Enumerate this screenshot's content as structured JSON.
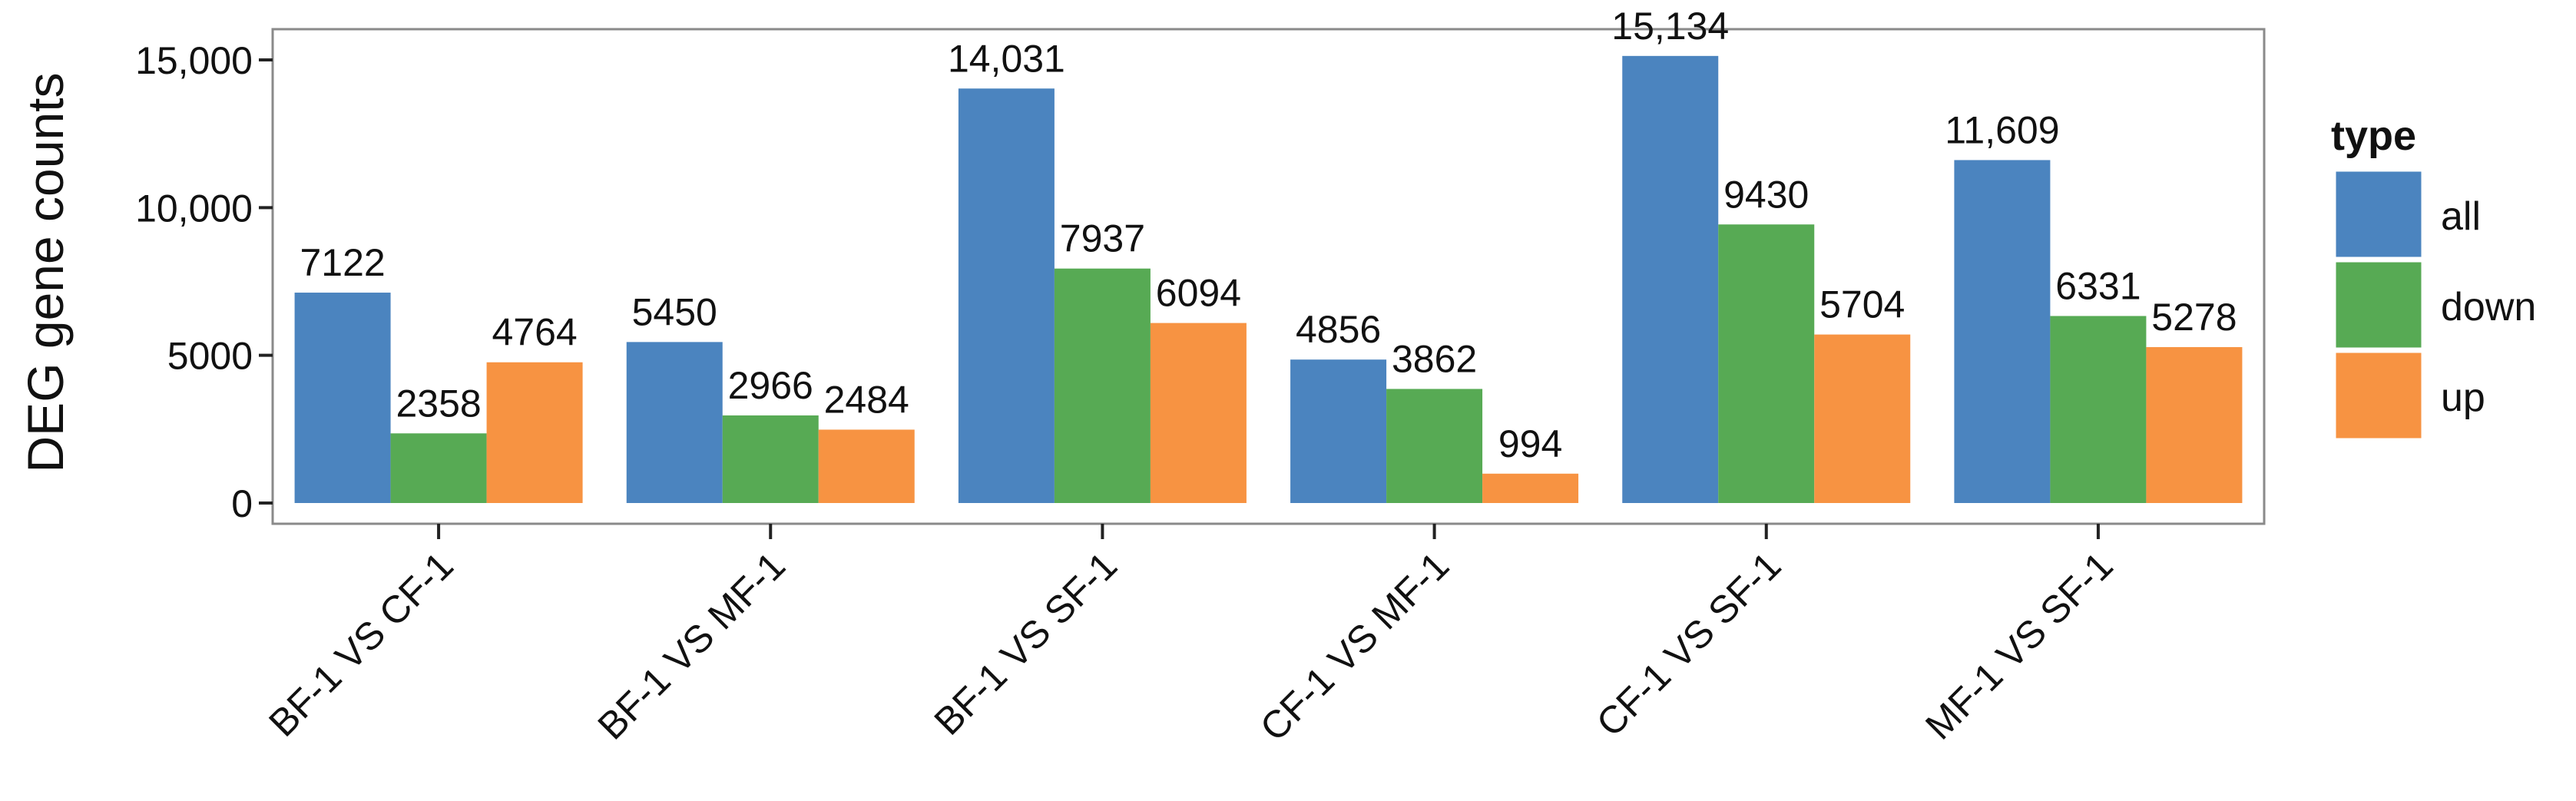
{
  "chart_data": {
    "type": "bar",
    "title": "",
    "xlabel": "",
    "ylabel": "DEG gene counts",
    "ylim": [
      0,
      15300
    ],
    "yticks": [
      {
        "value": 0,
        "label": "0"
      },
      {
        "value": 5000,
        "label": "5000"
      },
      {
        "value": 10000,
        "label": "10,000"
      },
      {
        "value": 15000,
        "label": "15,000"
      }
    ],
    "categories": [
      "BF-1 VS CF-1",
      "BF-1 VS MF-1",
      "BF-1 VS SF-1",
      "CF-1 VS MF-1",
      "CF-1 VS SF-1",
      "MF-1 VS SF-1"
    ],
    "series": [
      {
        "name": "all",
        "color": "#4b84bf",
        "values": [
          7122,
          5450,
          14031,
          4856,
          15134,
          11609
        ],
        "labels": [
          "7122",
          "5450",
          "14,031",
          "4856",
          "15,134",
          "11,609"
        ]
      },
      {
        "name": "down",
        "color": "#57aa54",
        "values": [
          2358,
          2966,
          7937,
          3862,
          9430,
          6331
        ],
        "labels": [
          "2358",
          "2966",
          "7937",
          "3862",
          "9430",
          "6331"
        ]
      },
      {
        "name": "up",
        "color": "#f79342",
        "values": [
          4764,
          2484,
          6094,
          994,
          5704,
          5278
        ],
        "labels": [
          "4764",
          "2484",
          "6094",
          "994",
          "5704",
          "5278"
        ]
      }
    ],
    "legend": {
      "title": "type",
      "position": "right"
    },
    "grid": false
  }
}
